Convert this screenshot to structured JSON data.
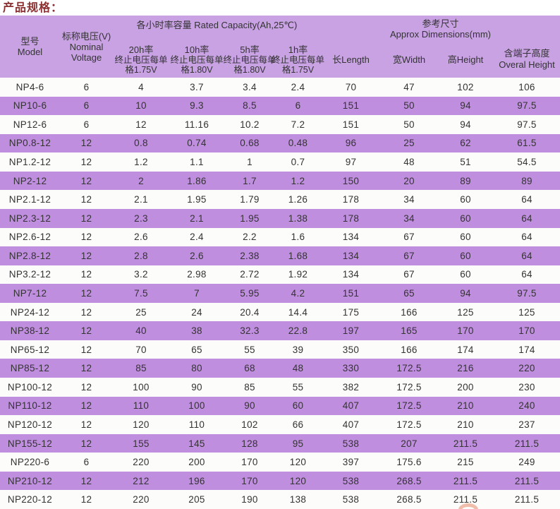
{
  "page_title": "产品规格：",
  "colors": {
    "title_color": "#8b3030",
    "header_bg": "#c9a2e4",
    "row_purple": "#c08edf",
    "row_white": "#fcfcfa",
    "text_color": "#333333",
    "artifact_color": "#e9a287"
  },
  "table": {
    "header": {
      "model": [
        "型号",
        "Model"
      ],
      "nominal_voltage": [
        "标称电压(V)",
        "Nominal",
        "Voltage"
      ],
      "capacity_group": "各小时率容量 Rated Capacity(Ah,25℃)",
      "capacity_cols": [
        [
          "20h率",
          "终止电压每单",
          "格1.75V"
        ],
        [
          "10h率",
          "终止电压每单",
          "格1.80V"
        ],
        [
          "5h率",
          "终止电压每单",
          "格1.80V"
        ],
        [
          "1h率",
          "终止电压每单",
          "格1.75V"
        ]
      ],
      "dimensions_group": [
        "参考尺寸",
        "Approx Dimensions(mm)"
      ],
      "length": "长Length",
      "width": "宽Width",
      "height": "高Height",
      "overall_height": [
        "含端子高度",
        "Overal Height"
      ]
    },
    "rows": [
      [
        "NP4-6",
        "6",
        "4",
        "3.7",
        "3.4",
        "2.4",
        "70",
        "47",
        "102",
        "106"
      ],
      [
        "NP10-6",
        "6",
        "10",
        "9.3",
        "8.5",
        "6",
        "151",
        "50",
        "94",
        "97.5"
      ],
      [
        "NP12-6",
        "6",
        "12",
        "11.16",
        "10.2",
        "7.2",
        "151",
        "50",
        "94",
        "97.5"
      ],
      [
        "NP0.8-12",
        "12",
        "0.8",
        "0.74",
        "0.68",
        "0.48",
        "96",
        "25",
        "62",
        "61.5"
      ],
      [
        "NP1.2-12",
        "12",
        "1.2",
        "1.1",
        "1",
        "0.7",
        "97",
        "48",
        "51",
        "54.5"
      ],
      [
        "NP2-12",
        "12",
        "2",
        "1.86",
        "1.7",
        "1.2",
        "150",
        "20",
        "89",
        "89"
      ],
      [
        "NP2.1-12",
        "12",
        "2.1",
        "1.95",
        "1.79",
        "1.26",
        "178",
        "34",
        "60",
        "64"
      ],
      [
        "NP2.3-12",
        "12",
        "2.3",
        "2.1",
        "1.95",
        "1.38",
        "178",
        "34",
        "60",
        "64"
      ],
      [
        "NP2.6-12",
        "12",
        "2.6",
        "2.4",
        "2.2",
        "1.6",
        "134",
        "67",
        "60",
        "64"
      ],
      [
        "NP2.8-12",
        "12",
        "2.8",
        "2.6",
        "2.38",
        "1.68",
        "134",
        "67",
        "60",
        "64"
      ],
      [
        "NP3.2-12",
        "12",
        "3.2",
        "2.98",
        "2.72",
        "1.92",
        "134",
        "67",
        "60",
        "64"
      ],
      [
        "NP7-12",
        "12",
        "7.5",
        "7",
        "5.95",
        "4.2",
        "151",
        "65",
        "94",
        "97.5"
      ],
      [
        "NP24-12",
        "12",
        "25",
        "24",
        "20.4",
        "14.4",
        "175",
        "166",
        "125",
        "125"
      ],
      [
        "NP38-12",
        "12",
        "40",
        "38",
        "32.3",
        "22.8",
        "197",
        "165",
        "170",
        "170"
      ],
      [
        "NP65-12",
        "12",
        "70",
        "65",
        "55",
        "39",
        "350",
        "166",
        "174",
        "174"
      ],
      [
        "NP85-12",
        "12",
        "85",
        "80",
        "68",
        "48",
        "330",
        "172.5",
        "216",
        "220"
      ],
      [
        "NP100-12",
        "12",
        "100",
        "90",
        "85",
        "55",
        "382",
        "172.5",
        "200",
        "230"
      ],
      [
        "NP110-12",
        "12",
        "110",
        "100",
        "90",
        "60",
        "407",
        "172.5",
        "210",
        "240"
      ],
      [
        "NP120-12",
        "12",
        "120",
        "110",
        "102",
        "66",
        "407",
        "172.5",
        "210",
        "237"
      ],
      [
        "NP155-12",
        "12",
        "155",
        "145",
        "128",
        "95",
        "538",
        "207",
        "211.5",
        "211.5"
      ],
      [
        "NP220-6",
        "6",
        "220",
        "200",
        "170",
        "120",
        "397",
        "175.6",
        "215",
        "249"
      ],
      [
        "NP210-12",
        "12",
        "212",
        "196",
        "170",
        "120",
        "538",
        "268.5",
        "211.5",
        "211.5"
      ],
      [
        "NP220-12",
        "12",
        "220",
        "205",
        "190",
        "138",
        "538",
        "268.5",
        "211.5",
        "211.5"
      ]
    ]
  }
}
